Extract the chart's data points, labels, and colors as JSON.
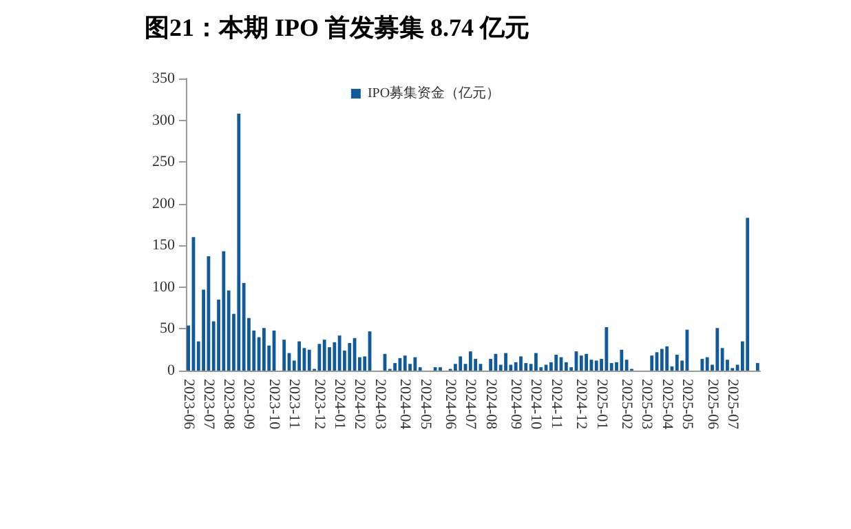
{
  "chart_data": {
    "type": "bar",
    "title": "图21：本期 IPO 首发募集 8.74 亿元",
    "categories": [
      "2023-06",
      null,
      null,
      null,
      "2023-07",
      null,
      null,
      null,
      "2023-08",
      null,
      null,
      null,
      "2023-09",
      null,
      null,
      null,
      null,
      "2023-10",
      null,
      null,
      null,
      "2023-11",
      null,
      null,
      null,
      null,
      "2023-12",
      null,
      null,
      null,
      "2024-01",
      null,
      null,
      null,
      "2024-02",
      null,
      null,
      null,
      "2024-03",
      null,
      null,
      null,
      null,
      "2024-04",
      null,
      null,
      null,
      "2024-05",
      null,
      null,
      null,
      null,
      "2024-06",
      null,
      null,
      null,
      "2024-07",
      null,
      null,
      null,
      "2024-08",
      null,
      null,
      null,
      null,
      "2024-09",
      null,
      null,
      null,
      "2024-10",
      null,
      null,
      null,
      "2024-11",
      null,
      null,
      null,
      null,
      "2024-12",
      null,
      null,
      null,
      "2025-01",
      null,
      null,
      null,
      null,
      "2025-02",
      null,
      null,
      null,
      "2025-03",
      null,
      null,
      null,
      "2025-04",
      null,
      null,
      null,
      "2025-05",
      null,
      null,
      null,
      null,
      "2025-06",
      null,
      null,
      null,
      "2025-07",
      null,
      null,
      null,
      null,
      null
    ],
    "series": [
      {
        "name": "IPO募集资金（亿元）",
        "color": "#105a9c",
        "values": [
          54,
          160,
          35,
          97,
          137,
          59,
          85,
          143,
          96,
          68,
          308,
          105,
          63,
          48,
          40,
          51,
          30,
          48,
          null,
          37,
          21,
          12,
          35,
          27,
          25,
          2,
          32,
          37,
          28,
          34,
          42,
          24,
          33,
          39,
          16,
          17,
          47,
          null,
          null,
          20,
          2,
          9,
          15,
          18,
          8,
          16,
          4,
          null,
          null,
          4,
          4,
          null,
          2,
          8,
          17,
          8,
          23,
          14,
          8,
          null,
          14,
          20,
          7,
          21,
          7,
          10,
          17,
          9,
          8,
          21,
          4,
          7,
          10,
          19,
          16,
          10,
          4,
          23,
          18,
          20,
          13,
          12,
          14,
          52,
          9,
          10,
          25,
          13,
          2,
          null,
          null,
          null,
          18,
          22,
          26,
          29,
          5,
          19,
          12,
          49,
          null,
          null,
          14,
          16,
          7,
          51,
          27,
          13,
          3,
          7,
          35,
          183,
          null,
          9
        ]
      }
    ],
    "ylim": [
      0,
      350
    ],
    "yticks": [
      0,
      50,
      100,
      150,
      200,
      250,
      300,
      350
    ],
    "legend": "top"
  }
}
